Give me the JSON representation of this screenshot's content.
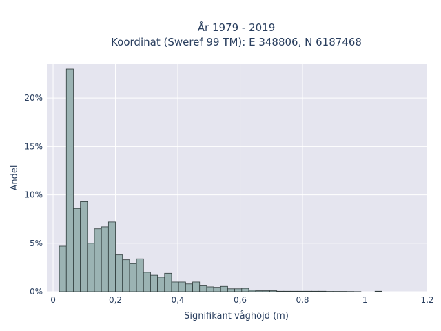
{
  "chart_data": {
    "type": "bar",
    "title_lines": [
      "År 1979 - 2019",
      "Koordinat (Sweref 99 TM): E 348806, N 6187468"
    ],
    "xlabel": "Signifikant våghöjd (m)",
    "ylabel": "Andel",
    "xlim": [
      -0.02,
      1.2
    ],
    "ylim": [
      0,
      0.235
    ],
    "x_ticks": [
      0,
      0.2,
      0.4,
      0.6,
      0.8,
      1,
      1.2
    ],
    "x_tick_labels": [
      "0",
      "0,2",
      "0,4",
      "0,6",
      "0,8",
      "1",
      "1,2"
    ],
    "y_ticks": [
      0,
      0.05,
      0.1,
      0.15,
      0.2
    ],
    "y_tick_labels": [
      "0%",
      "5%",
      "10%",
      "15%",
      "20%"
    ],
    "grid": true,
    "bin_width": 0.0225,
    "bin_start": 0.02,
    "values": [
      0.047,
      0.23,
      0.086,
      0.093,
      0.05,
      0.065,
      0.067,
      0.072,
      0.038,
      0.033,
      0.029,
      0.034,
      0.02,
      0.017,
      0.015,
      0.019,
      0.01,
      0.01,
      0.008,
      0.01,
      0.006,
      0.005,
      0.0045,
      0.0055,
      0.003,
      0.003,
      0.0035,
      0.0015,
      0.001,
      0.001,
      0.001,
      0.0005,
      0.0005,
      0.0005,
      0.0005,
      0.0005,
      0.0005,
      0.0005,
      0.0003,
      0.0003,
      0.0003,
      0.0002,
      0.0001,
      0,
      0,
      0.0005
    ],
    "colors": {
      "plot_bg": "#e5e5ef",
      "grid": "#ffffff",
      "bar_fill": "#9bb3b3",
      "bar_stroke": "#2f3b3b"
    }
  }
}
